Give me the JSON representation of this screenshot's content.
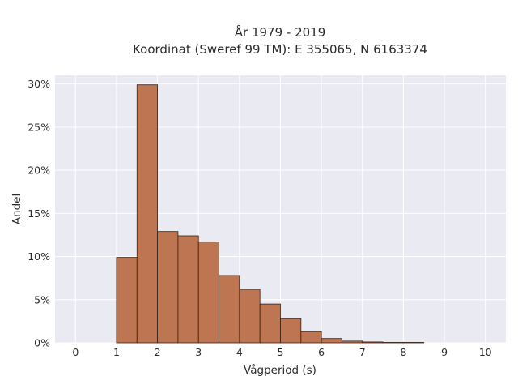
{
  "chart_data": {
    "type": "bar",
    "title": "År 1979 - 2019",
    "subtitle": "Koordinat (Sweref 99 TM): E 355065, N 6163374",
    "xlabel": "Vågperiod (s)",
    "ylabel": "Andel",
    "xlim": [
      -0.5,
      10.5
    ],
    "ylim": [
      0,
      31
    ],
    "x_ticks": [
      0,
      1,
      2,
      3,
      4,
      5,
      6,
      7,
      8,
      9,
      10
    ],
    "y_ticks": [
      0,
      5,
      10,
      15,
      20,
      25,
      30
    ],
    "y_tick_labels": [
      "0%",
      "5%",
      "10%",
      "15%",
      "20%",
      "25%",
      "30%"
    ],
    "bin_width": 0.5,
    "bin_starts": [
      1.0,
      1.5,
      2.0,
      2.5,
      3.0,
      3.5,
      4.0,
      4.5,
      5.0,
      5.5,
      6.0,
      6.5,
      7.0,
      7.5,
      8.0
    ],
    "values": [
      9.9,
      29.9,
      12.9,
      12.4,
      11.7,
      7.8,
      6.2,
      4.5,
      2.8,
      1.3,
      0.5,
      0.2,
      0.1,
      0.05,
      0.05
    ],
    "grid": true,
    "colors": {
      "bar_fill": "#b86b43",
      "bar_edge": "#3a1f12",
      "plot_background": "#eaeaf2",
      "grid": "#ffffff"
    }
  }
}
